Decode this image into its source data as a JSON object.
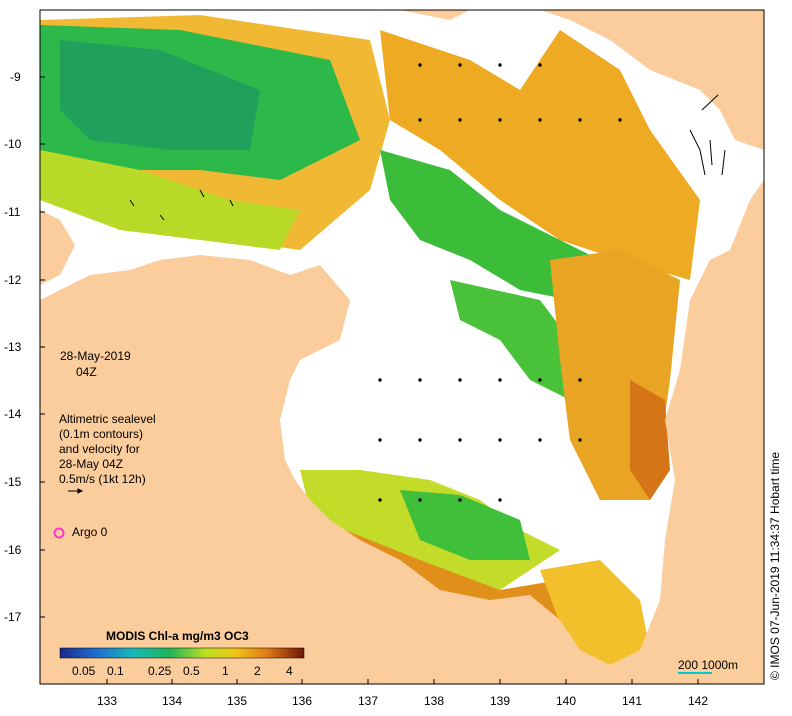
{
  "map": {
    "date": "28-May-2019",
    "time": "04Z",
    "altimetry_lines": [
      "Altimetric sealevel",
      "(0.1m contours)",
      "and velocity for",
      "28-May 04Z",
      "0.5m/s (1kt 12h)"
    ],
    "argo_label": "Argo 0",
    "colorbar_title": "MODIS Chl-a mg/m3 OC3",
    "colorbar_ticks": [
      "0.05",
      "0.1",
      "0.25",
      "0.5",
      "1",
      "2",
      "4"
    ],
    "scale_label": "200  1000m",
    "credit": "© IMOS 07-Jun-2019 11:34:37 Hobart time",
    "lon_ticks": [
      "133",
      "134",
      "135",
      "136",
      "137",
      "138",
      "139",
      "140",
      "141",
      "142"
    ],
    "lat_ticks": [
      "-9",
      "-10",
      "-11",
      "-12",
      "-13",
      "-14",
      "-15",
      "-16",
      "-17"
    ],
    "colors": {
      "land": "#fbcd9c",
      "ocean_white": "#ffffff",
      "chl_low": "#2e49c8",
      "chl_mid": "#1fb35a",
      "chl_high": "#e08a1a",
      "chl_max": "#7a1a0a",
      "argo": "#ff33cc",
      "scale_line": "#00cccc"
    }
  }
}
